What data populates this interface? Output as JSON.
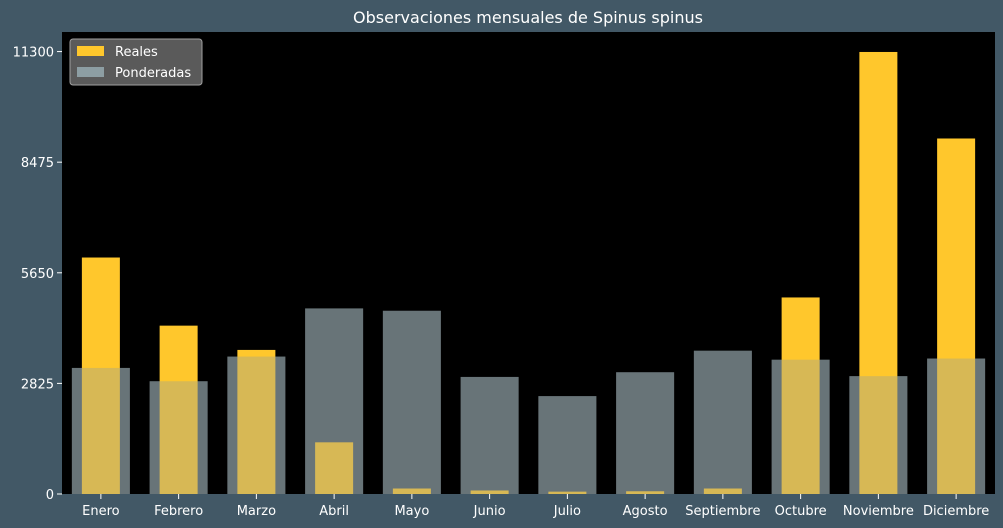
{
  "chart_data": {
    "type": "bar",
    "title": "Observaciones mensuales de Spinus spinus",
    "xlabel": "",
    "ylabel": "",
    "categories": [
      "Enero",
      "Febrero",
      "Marzo",
      "Abril",
      "Mayo",
      "Junio",
      "Julio",
      "Agosto",
      "Septiembre",
      "Octubre",
      "Noviembre",
      "Diciembre"
    ],
    "series": [
      {
        "name": "Reales",
        "color": "#ffc72c",
        "values": [
          6040,
          4300,
          3680,
          1320,
          140,
          90,
          60,
          70,
          140,
          5020,
          11290,
          9080
        ]
      },
      {
        "name": "Ponderadas",
        "color": "#8d9ea3",
        "values": [
          3220,
          2880,
          3510,
          4740,
          4680,
          2990,
          2500,
          3110,
          3660,
          3430,
          3010,
          3460
        ]
      }
    ],
    "yticks": [
      0,
      2825,
      5650,
      8475,
      11300
    ],
    "ylim": [
      0,
      11800
    ],
    "legend_position": "top-left",
    "grid": false
  }
}
